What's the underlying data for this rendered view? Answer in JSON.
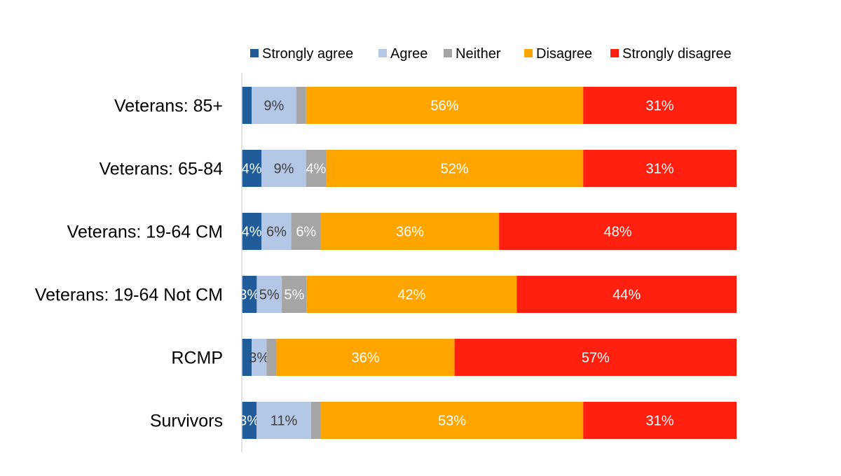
{
  "chart_data": {
    "type": "bar",
    "orientation": "horizontal",
    "stacked": true,
    "percent_stacked": true,
    "legend_position": "top",
    "grid": false,
    "xlim": [
      0,
      100
    ],
    "title": "",
    "xlabel": "",
    "ylabel": "",
    "categories": [
      "Veterans: 85+",
      "Veterans: 65-84",
      "Veterans: 19-64 CM",
      "Veterans: 19-64 Not CM",
      "RCMP",
      "Survivors"
    ],
    "series": [
      {
        "name": "Strongly agree",
        "color": "#1F5C99",
        "label_color": "#FFFFFF",
        "values": [
          2,
          4,
          4,
          3,
          2,
          3
        ],
        "labels": [
          "",
          "4%",
          "4%",
          "3%",
          "",
          "3%"
        ]
      },
      {
        "name": "Agree",
        "color": "#B4C7E7",
        "label_color": "#404040",
        "values": [
          9,
          9,
          6,
          5,
          3,
          11
        ],
        "labels": [
          "9%",
          "9%",
          "6%",
          "5%",
          "3%",
          "11%"
        ]
      },
      {
        "name": "Neither",
        "color": "#A5A5A5",
        "label_color": "#FFFFFF",
        "values": [
          2,
          4,
          6,
          5,
          2,
          2
        ],
        "labels": [
          "",
          "4%",
          "6%",
          "5%",
          "",
          ""
        ]
      },
      {
        "name": "Disagree",
        "color": "#FFA500",
        "label_color": "#FFFFFF",
        "values": [
          56,
          52,
          36,
          42,
          36,
          53
        ],
        "labels": [
          "56%",
          "52%",
          "36%",
          "42%",
          "36%",
          "53%"
        ]
      },
      {
        "name": "Strongly disagree",
        "color": "#FF2010",
        "label_color": "#FFFFFF",
        "values": [
          31,
          31,
          48,
          44,
          57,
          31
        ],
        "labels": [
          "31%",
          "31%",
          "48%",
          "44%",
          "57%",
          "31%"
        ]
      }
    ]
  }
}
